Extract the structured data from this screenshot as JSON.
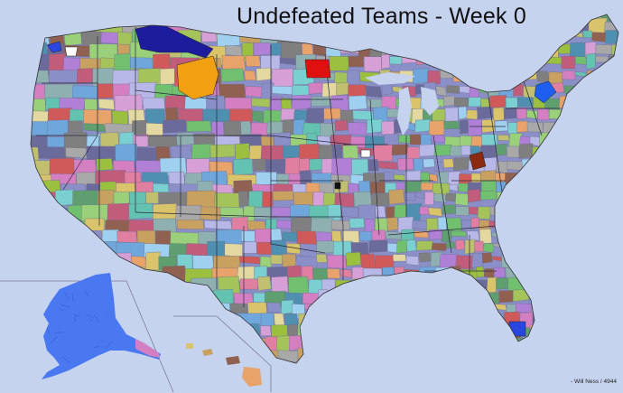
{
  "title": "Undefeated Teams - Week 0",
  "credit": "- Will Ness / 4944",
  "colors": {
    "background": "#c6d3ef",
    "region_palette": [
      "#8b8fc7",
      "#a4c35a",
      "#d57fc3",
      "#63c3b0",
      "#d9c36b",
      "#7f7f7f",
      "#e8a36a",
      "#6fa7dc",
      "#c25c7b",
      "#9ad07a",
      "#b07fd6",
      "#5f9e6e",
      "#e3d8a0",
      "#8fb0b0",
      "#d05a5a",
      "#7ad0d0",
      "#b8b8e8",
      "#c8a060",
      "#6b6b9b",
      "#e07fa0",
      "#9bbf3f",
      "#4f8fb0",
      "#d6a0d6",
      "#a8a8a8",
      "#70c070",
      "#c0c070",
      "#a0d0f0",
      "#906050"
    ],
    "highlight": {
      "navy": "#1c1c9c",
      "royal_blue": "#2a46e0",
      "bright_blue": "#1e5ff0",
      "red": "#e01010",
      "orange": "#f0a010",
      "dark_red": "#8b2a10",
      "white": "#ffffff",
      "black": "#111111"
    },
    "alaska": "#4a78f0"
  }
}
